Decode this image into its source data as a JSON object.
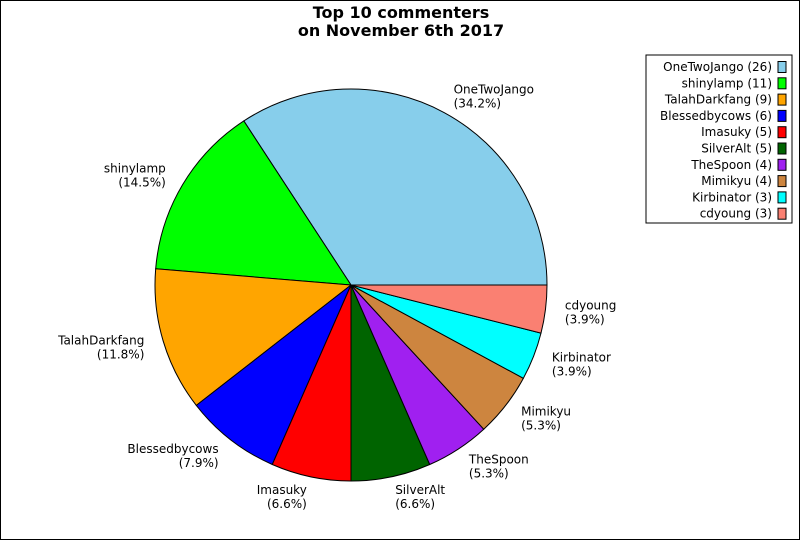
{
  "chart_data": {
    "type": "pie",
    "title_lines": [
      "Top 10 commenters",
      "on November 6th 2017"
    ],
    "slices": [
      {
        "label": "OneTwoJango",
        "count": 26,
        "percent": "34.2%",
        "legend": "OneTwoJango (26)",
        "color": "#87ceeb"
      },
      {
        "label": "shinylamp",
        "count": 11,
        "percent": "14.5%",
        "legend": "shinylamp (11)",
        "color": "#00ff00"
      },
      {
        "label": "TalahDarkfang",
        "count": 9,
        "percent": "11.8%",
        "legend": "TalahDarkfang (9)",
        "color": "#ffa500"
      },
      {
        "label": "Blessedbycows",
        "count": 6,
        "percent": "7.9%",
        "legend": "Blessedbycows (6)",
        "color": "#0000ff"
      },
      {
        "label": "Imasuky",
        "count": 5,
        "percent": "6.6%",
        "legend": "Imasuky (5)",
        "color": "#ff0000"
      },
      {
        "label": "SilverAlt",
        "count": 5,
        "percent": "6.6%",
        "legend": "SilverAlt (5)",
        "color": "#006400"
      },
      {
        "label": "TheSpoon",
        "count": 4,
        "percent": "5.3%",
        "legend": "TheSpoon (4)",
        "color": "#a020f0"
      },
      {
        "label": "Mimikyu",
        "count": 4,
        "percent": "5.3%",
        "legend": "Mimikyu (4)",
        "color": "#cd853f"
      },
      {
        "label": "Kirbinator",
        "count": 3,
        "percent": "3.9%",
        "legend": "Kirbinator (3)",
        "color": "#00ffff"
      },
      {
        "label": "cdyoung",
        "count": 3,
        "percent": "3.9%",
        "legend": "cdyoung (3)",
        "color": "#fa8072"
      }
    ],
    "start_angle_degrees": 0,
    "direction": "counterclockwise",
    "legend_position": "top-right"
  }
}
